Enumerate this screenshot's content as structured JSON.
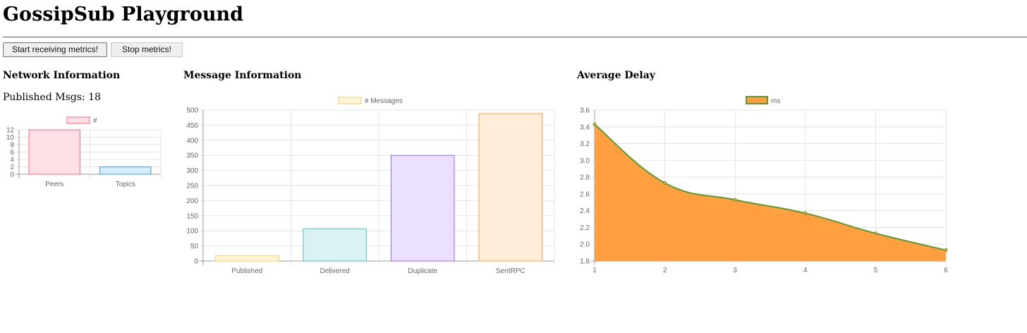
{
  "page": {
    "title": "GossipSub Playground",
    "buttons": {
      "start_label": "Start receiving metrics!",
      "stop_label": "Stop metrics!"
    }
  },
  "network": {
    "heading": "Network Information",
    "published_label": "Published Msgs:",
    "published_value": "18"
  },
  "message": {
    "heading": "Message Information"
  },
  "delay": {
    "heading": "Average Delay"
  },
  "chart_data": [
    {
      "type": "bar",
      "categories": [
        "Peers",
        "Topics"
      ],
      "series": [
        {
          "name": "#",
          "values": [
            12,
            2
          ]
        }
      ],
      "yticks": [
        "12",
        "10",
        "8",
        "6",
        "4",
        "2",
        "0"
      ],
      "ylim": [
        0,
        12
      ],
      "legend": "top",
      "grid": true,
      "colors": {
        "fills": [
          "#ffe0e6",
          "#d7ecfb"
        ],
        "strokes": [
          "#ff6384",
          "#36a2eb"
        ]
      }
    },
    {
      "type": "bar",
      "categories": [
        "Published",
        "Delivered",
        "Duplicate",
        "SentRPC"
      ],
      "series": [
        {
          "name": "# Messages",
          "values": [
            18,
            107,
            350,
            488
          ]
        }
      ],
      "yticks": [
        "500",
        "450",
        "400",
        "350",
        "300",
        "250",
        "200",
        "150",
        "100",
        "50",
        "0"
      ],
      "ylim": [
        0,
        500
      ],
      "legend": "top",
      "grid": true,
      "colors": {
        "fills": [
          "#fff5dd",
          "#dbf2f2",
          "#ebe0ff",
          "#ffecd9"
        ],
        "strokes": [
          "#ffcd56",
          "#4bc0c0",
          "#9966ff",
          "#ff9f40"
        ]
      }
    },
    {
      "type": "area",
      "x": [
        "1",
        "2",
        "3",
        "4",
        "5",
        "6"
      ],
      "series": [
        {
          "name": "ms",
          "values": [
            3.43,
            2.73,
            2.53,
            2.37,
            2.13,
            1.93
          ]
        }
      ],
      "yticks": [
        "3.6",
        "3.4",
        "3.2",
        "3.0",
        "2.8",
        "2.6",
        "2.4",
        "2.2",
        "2.0",
        "1.8"
      ],
      "ylim": [
        1.8,
        3.6
      ],
      "legend": "top",
      "grid": true,
      "colors": {
        "fill": "#ff9f40",
        "stroke": "#5a9a32"
      }
    }
  ]
}
